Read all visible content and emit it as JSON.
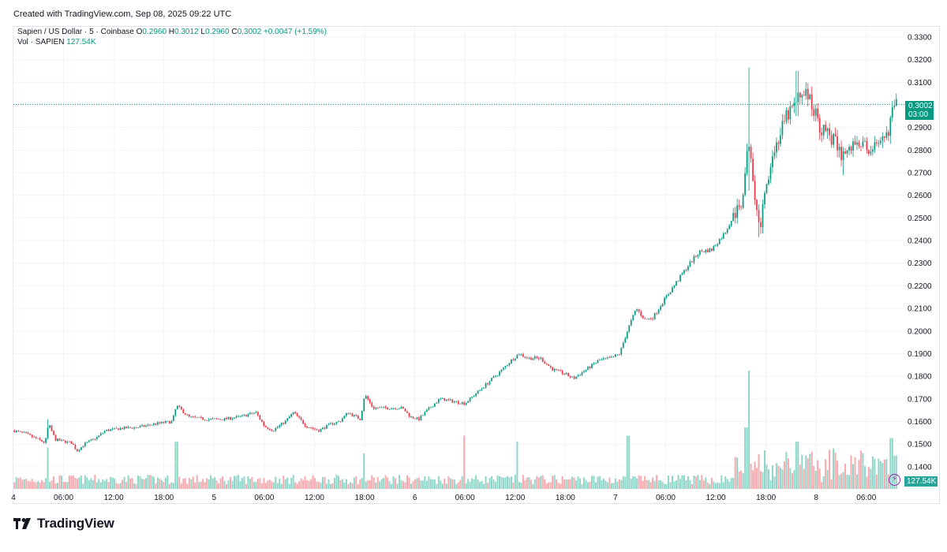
{
  "header": {
    "created": "Created with TradingView.com, Sep 08, 2025 09:22 UTC"
  },
  "legend": {
    "symbol": "Sapien / US Dollar · 5 · Coinbase",
    "open_label": "O",
    "open": "0.2960",
    "high_label": "H",
    "high": "0.3012",
    "low_label": "L",
    "low": "0.2960",
    "close_label": "C",
    "close": "0.3002",
    "change": "+0.0047 (+1.59%)",
    "vol_label": "Vol · SAPIEN",
    "vol_value": "127.54K"
  },
  "price_tag": {
    "price": "0.3002",
    "countdown": "03:00"
  },
  "volume_tag": "127.54K",
  "brand": {
    "name": "TradingView"
  },
  "colors": {
    "up": "#089981",
    "down": "#f23645",
    "vol_up": "#8fd6c9",
    "vol_down": "#f7a9ae",
    "grid": "#f0f3fa",
    "axis_text": "#131722"
  },
  "chart_data": {
    "type": "candlestick",
    "title": "Sapien / US Dollar · 5 · Coinbase",
    "interval": "5m",
    "ylim": [
      0.1295,
      0.3345
    ],
    "y_ticks": [
      "0.3300",
      "0.3200",
      "0.3100",
      "0.3000",
      "0.2900",
      "0.2800",
      "0.2700",
      "0.2600",
      "0.2500",
      "0.2400",
      "0.2300",
      "0.2200",
      "0.2100",
      "0.2000",
      "0.1900",
      "0.1800",
      "0.1700",
      "0.1600",
      "0.1500",
      "0.1400"
    ],
    "x_ticks": [
      {
        "label": "4",
        "hour": 0
      },
      {
        "label": "06:00",
        "hour": 6
      },
      {
        "label": "12:00",
        "hour": 12
      },
      {
        "label": "18:00",
        "hour": 18
      },
      {
        "label": "5",
        "hour": 24
      },
      {
        "label": "06:00",
        "hour": 30
      },
      {
        "label": "12:00",
        "hour": 36
      },
      {
        "label": "18:00",
        "hour": 42
      },
      {
        "label": "6",
        "hour": 48
      },
      {
        "label": "06:00",
        "hour": 54
      },
      {
        "label": "12:00",
        "hour": 60
      },
      {
        "label": "18:00",
        "hour": 66
      },
      {
        "label": "7",
        "hour": 72
      },
      {
        "label": "06:00",
        "hour": 78
      },
      {
        "label": "12:00",
        "hour": 84
      },
      {
        "label": "18:00",
        "hour": 90
      },
      {
        "label": "8",
        "hour": 96
      },
      {
        "label": "06:00",
        "hour": 102
      }
    ],
    "x_range_hours": [
      0,
      105.7
    ],
    "price_path": [
      [
        0.0,
        0.156
      ],
      [
        1.5,
        0.1545
      ],
      [
        3.0,
        0.152
      ],
      [
        3.8,
        0.1505
      ],
      [
        4.2,
        0.159
      ],
      [
        5.0,
        0.152
      ],
      [
        7.0,
        0.1505
      ],
      [
        7.6,
        0.147
      ],
      [
        8.5,
        0.15
      ],
      [
        10.0,
        0.153
      ],
      [
        11.0,
        0.156
      ],
      [
        13.0,
        0.157
      ],
      [
        15.0,
        0.1575
      ],
      [
        17.0,
        0.159
      ],
      [
        19.0,
        0.16
      ],
      [
        19.5,
        0.167
      ],
      [
        21.0,
        0.162
      ],
      [
        23.0,
        0.161
      ],
      [
        25.0,
        0.161
      ],
      [
        27.0,
        0.162
      ],
      [
        29.0,
        0.164
      ],
      [
        30.0,
        0.158
      ],
      [
        31.0,
        0.156
      ],
      [
        32.5,
        0.16
      ],
      [
        33.5,
        0.164
      ],
      [
        35.0,
        0.158
      ],
      [
        36.5,
        0.156
      ],
      [
        38.0,
        0.159
      ],
      [
        39.0,
        0.16
      ],
      [
        40.0,
        0.164
      ],
      [
        41.5,
        0.161
      ],
      [
        42.0,
        0.172
      ],
      [
        43.0,
        0.166
      ],
      [
        45.0,
        0.166
      ],
      [
        46.5,
        0.166
      ],
      [
        47.5,
        0.162
      ],
      [
        48.5,
        0.161
      ],
      [
        49.5,
        0.165
      ],
      [
        51.0,
        0.17
      ],
      [
        52.5,
        0.169
      ],
      [
        54.0,
        0.168
      ],
      [
        55.5,
        0.173
      ],
      [
        57.0,
        0.178
      ],
      [
        58.5,
        0.183
      ],
      [
        59.5,
        0.187
      ],
      [
        60.5,
        0.19
      ],
      [
        61.5,
        0.188
      ],
      [
        63.0,
        0.188
      ],
      [
        64.5,
        0.183
      ],
      [
        66.0,
        0.181
      ],
      [
        67.0,
        0.179
      ],
      [
        68.5,
        0.183
      ],
      [
        70.0,
        0.187
      ],
      [
        71.5,
        0.188
      ],
      [
        72.5,
        0.19
      ],
      [
        73.5,
        0.201
      ],
      [
        74.5,
        0.21
      ],
      [
        75.5,
        0.205
      ],
      [
        76.5,
        0.206
      ],
      [
        77.5,
        0.212
      ],
      [
        79.0,
        0.22
      ],
      [
        80.5,
        0.228
      ],
      [
        82.0,
        0.235
      ],
      [
        83.5,
        0.236
      ],
      [
        85.0,
        0.243
      ],
      [
        86.0,
        0.25
      ],
      [
        87.0,
        0.255
      ],
      [
        87.5,
        0.27
      ],
      [
        88.0,
        0.285
      ],
      [
        88.7,
        0.26
      ],
      [
        89.2,
        0.245
      ],
      [
        89.8,
        0.257
      ],
      [
        90.5,
        0.275
      ],
      [
        91.5,
        0.285
      ],
      [
        92.5,
        0.295
      ],
      [
        93.5,
        0.3
      ],
      [
        94.5,
        0.307
      ],
      [
        95.5,
        0.3
      ],
      [
        96.5,
        0.29
      ],
      [
        98.0,
        0.285
      ],
      [
        99.0,
        0.278
      ],
      [
        100.0,
        0.28
      ],
      [
        101.0,
        0.285
      ],
      [
        102.0,
        0.28
      ],
      [
        103.0,
        0.282
      ],
      [
        103.5,
        0.28
      ],
      [
        104.5,
        0.287
      ],
      [
        105.0,
        0.296
      ],
      [
        105.7,
        0.3002
      ]
    ],
    "spikes": [
      {
        "hour": 4.1,
        "high": 0.161,
        "low": 0.152
      },
      {
        "hour": 88.0,
        "high": 0.3165,
        "low": 0.262
      },
      {
        "hour": 89.2,
        "high": 0.256,
        "low": 0.2415
      },
      {
        "hour": 93.7,
        "high": 0.315,
        "low": 0.295
      },
      {
        "hour": 99.2,
        "high": 0.28,
        "low": 0.269
      }
    ],
    "last_price": 0.3002,
    "volume": {
      "last": "127.54K",
      "spikes": [
        {
          "hour": 4.2,
          "rel": 0.35,
          "up": true
        },
        {
          "hour": 19.5,
          "rel": 0.4,
          "up": true
        },
        {
          "hour": 42.0,
          "rel": 0.3,
          "up": true
        },
        {
          "hour": 54.0,
          "rel": 0.45,
          "up": true
        },
        {
          "hour": 60.3,
          "rel": 0.4,
          "up": true
        },
        {
          "hour": 73.5,
          "rel": 0.45,
          "up": true
        },
        {
          "hour": 88.0,
          "rel": 1.0,
          "up": false
        },
        {
          "hour": 87.6,
          "rel": 0.52,
          "up": true
        },
        {
          "hour": 93.7,
          "rel": 0.4,
          "up": false
        },
        {
          "hour": 105.0,
          "rel": 0.43,
          "up": true
        }
      ]
    }
  }
}
